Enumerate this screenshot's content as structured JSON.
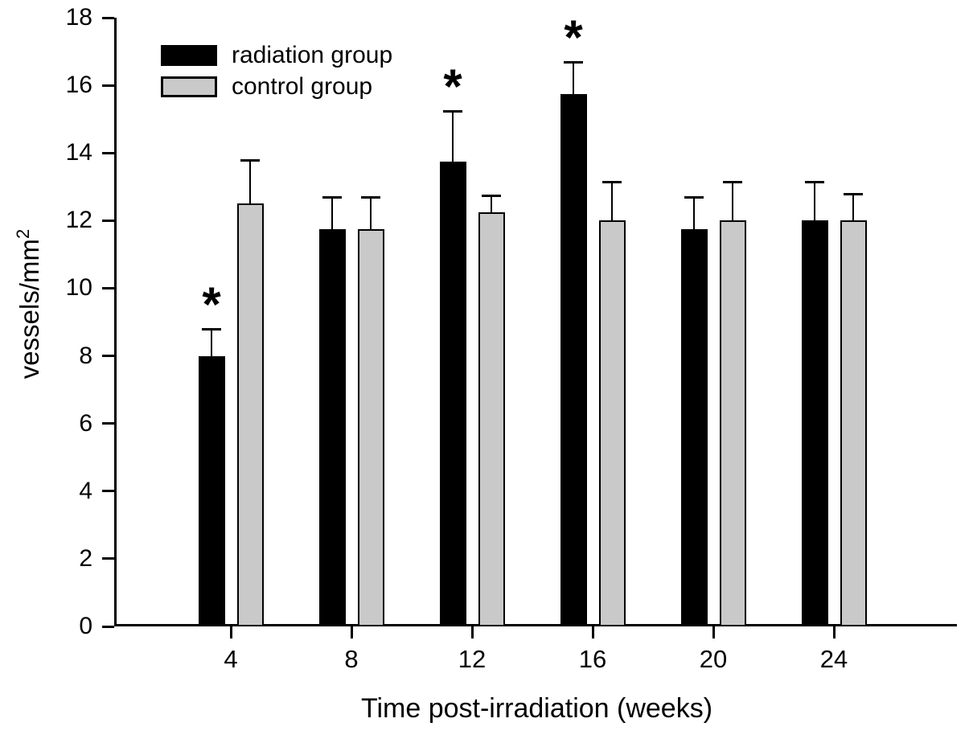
{
  "chart_data": {
    "type": "bar",
    "title": "",
    "xlabel": "Time post-irradiation (weeks)",
    "ylabel": "vessels/mm",
    "ylabel_sup": "2",
    "ylim": [
      0,
      18
    ],
    "yticks": [
      0,
      2,
      4,
      6,
      8,
      10,
      12,
      14,
      16,
      18
    ],
    "categories": [
      "4",
      "8",
      "12",
      "16",
      "20",
      "24"
    ],
    "series": [
      {
        "name": "radiation group",
        "color": "#000000",
        "values": [
          8.0,
          11.75,
          13.75,
          15.75,
          11.75,
          12.0
        ],
        "errors": [
          0.8,
          0.95,
          1.5,
          0.95,
          0.95,
          1.15
        ],
        "significant": [
          true,
          false,
          true,
          true,
          false,
          false
        ]
      },
      {
        "name": "control group",
        "color": "#c9c9c9",
        "values": [
          12.5,
          11.75,
          12.25,
          12.0,
          12.0,
          12.0
        ],
        "errors": [
          1.3,
          0.95,
          0.5,
          1.15,
          1.15,
          0.8
        ],
        "significant": [
          false,
          false,
          false,
          false,
          false,
          false
        ]
      }
    ],
    "significance_marker": "*",
    "error_bars": "upper",
    "bar_border_color": "#000000",
    "legend_position": "top-left",
    "grid": false
  },
  "legend": {
    "items": [
      {
        "label": "radiation group",
        "color": "#000000"
      },
      {
        "label": "control group",
        "color": "#c9c9c9"
      }
    ]
  }
}
